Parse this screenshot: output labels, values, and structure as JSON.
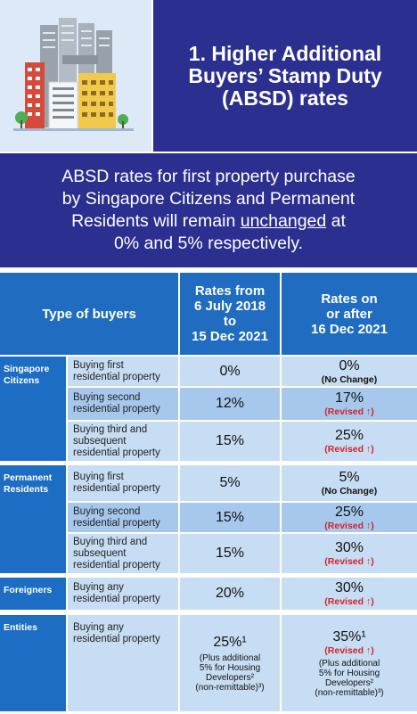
{
  "header": {
    "title_line1": "1. Higher Additional",
    "title_line2": "Buyers’ Stamp Duty",
    "title_line3": "(ABSD) rates"
  },
  "intro": {
    "line1": "ABSD rates for first property purchase",
    "line2": "by Singapore Citizens and Permanent",
    "line3_pre": "Residents will remain ",
    "line3_u": "unchanged",
    "line3_post": " at",
    "line4": "0% and 5% respectively."
  },
  "table": {
    "col1": "Type of buyers",
    "col2": [
      "Rates from",
      "6 July 2018",
      "to",
      "15 Dec 2021"
    ],
    "col3": [
      "Rates on",
      "or after",
      "16 Dec 2021"
    ],
    "groups": [
      {
        "category": [
          "Singapore",
          "Citizens"
        ],
        "rows": [
          {
            "desc": [
              "Buying first",
              "residential property"
            ],
            "old": "0%",
            "new": "0%",
            "status": "(No Change)"
          },
          {
            "desc": [
              "Buying second",
              "residential property"
            ],
            "old": "12%",
            "new": "17%",
            "status": "(Revised ↑)"
          },
          {
            "desc": [
              "Buying third and",
              "subsequent",
              "residential property"
            ],
            "old": "15%",
            "new": "25%",
            "status": "(Revised ↑)"
          }
        ]
      },
      {
        "category": [
          "Permanent",
          "Residents"
        ],
        "rows": [
          {
            "desc": [
              "Buying first",
              "residential property"
            ],
            "old": "5%",
            "new": "5%",
            "status": "(No Change)"
          },
          {
            "desc": [
              "Buying second",
              "residential property"
            ],
            "old": "15%",
            "new": "25%",
            "status": "(Revised ↑)"
          },
          {
            "desc": [
              "Buying third and",
              "subsequent",
              "residential property"
            ],
            "old": "15%",
            "new": "30%",
            "status": "(Revised ↑)"
          }
        ]
      },
      {
        "category": [
          "Foreigners"
        ],
        "rows": [
          {
            "desc": [
              "Buying any",
              "residential property"
            ],
            "old": "20%",
            "new": "30%",
            "status": "(Revised ↑)"
          }
        ]
      },
      {
        "category": [
          "Entities"
        ],
        "rows": [
          {
            "desc": [
              "Buying any",
              "residential property"
            ],
            "old": "25%¹",
            "new": "35%¹",
            "status": "(Revised ↑)",
            "note_old": [
              "(Plus additional",
              "5% for Housing",
              "Developers²",
              "(non-remittable)³)"
            ],
            "note_new": [
              "(Plus additional",
              "5% for Housing",
              "Developers²",
              "(non-remittable)³)"
            ]
          }
        ]
      }
    ]
  },
  "colors": {
    "navy": "#2b2f8f",
    "header_blue": "#1f6cc0",
    "light_row": "#c7ddf3",
    "mid_row": "#a6c8ec",
    "revised_red": "#d3232b"
  }
}
